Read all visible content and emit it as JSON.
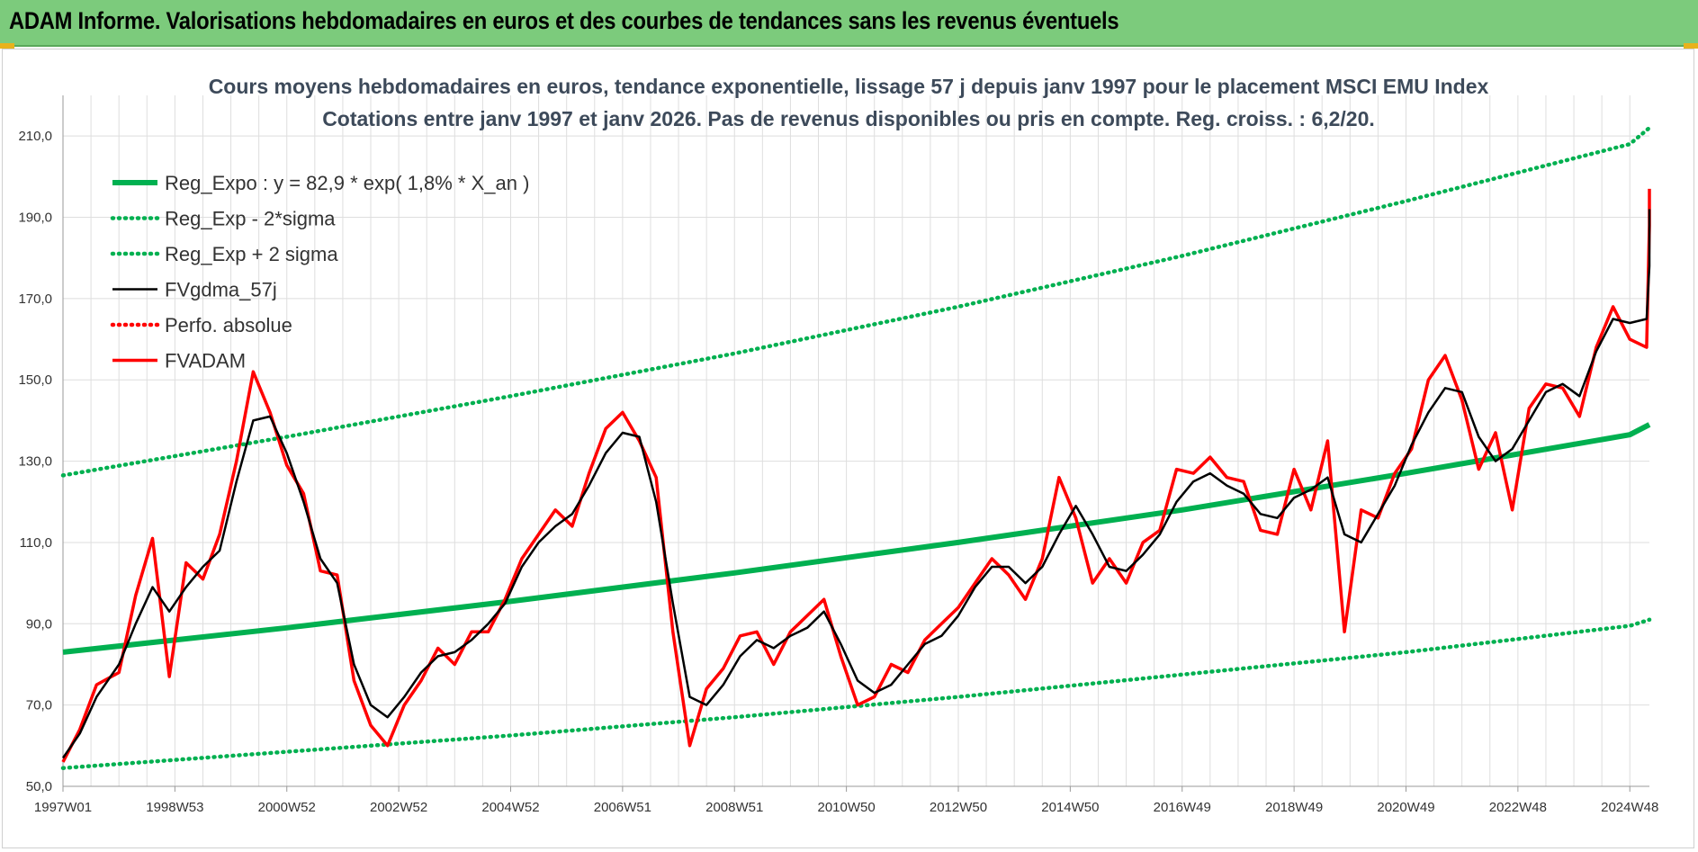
{
  "banner": {
    "title": "ADAM Informe. Valorisations hebdomadaires en euros et des courbes de tendances sans les revenus éventuels"
  },
  "colors": {
    "banner_bg": "#7ccb7c",
    "trend": "#00b050",
    "smooth": "#000000",
    "price": "#ff0000",
    "corner": "#e8b21c"
  },
  "chart_data": {
    "type": "line",
    "title": "Cours moyens hebdomadaires en euros, tendance exponentielle, lissage 57 j depuis janv 1997 pour le placement MSCI EMU Index",
    "subtitle": "Cotations entre janv 1997 et janv 2026. Pas de revenus disponibles ou pris en compte. Reg. croiss. : 6,2/20.",
    "xlabel": "",
    "ylabel": "",
    "ylim": [
      50,
      220
    ],
    "xlim": [
      1997.0,
      2026.0
    ],
    "grid": true,
    "legend_position": "top-left",
    "y_ticks": [
      "50,0",
      "70,0",
      "90,0",
      "110,0",
      "130,0",
      "150,0",
      "170,0",
      "190,0",
      "210,0"
    ],
    "x_ticks": [
      {
        "label": "1997W01",
        "x": 1997.0
      },
      {
        "label": "1998W53",
        "x": 1999.0
      },
      {
        "label": "2000W52",
        "x": 2001.0
      },
      {
        "label": "2002W52",
        "x": 2003.0
      },
      {
        "label": "2004W52",
        "x": 2005.0
      },
      {
        "label": "2006W51",
        "x": 2007.0
      },
      {
        "label": "2008W51",
        "x": 2009.0
      },
      {
        "label": "2010W50",
        "x": 2011.0
      },
      {
        "label": "2012W50",
        "x": 2013.0
      },
      {
        "label": "2014W50",
        "x": 2015.0
      },
      {
        "label": "2016W49",
        "x": 2017.0
      },
      {
        "label": "2018W49",
        "x": 2019.0
      },
      {
        "label": "2020W49",
        "x": 2021.0
      },
      {
        "label": "2022W48",
        "x": 2023.0
      },
      {
        "label": "2024W48",
        "x": 2025.0
      }
    ],
    "series": [
      {
        "name": "Reg_Expo : y = 82,9 * exp( 1,8% *  X_an )",
        "style": "thick",
        "color": "#00b050",
        "x": [
          1997.0,
          2001.0,
          2005.0,
          2009.0,
          2013.0,
          2017.0,
          2021.0,
          2025.0,
          2026.0
        ],
        "y": [
          83.0,
          89.0,
          95.5,
          102.5,
          110.0,
          118.0,
          127.0,
          136.5,
          139.0
        ]
      },
      {
        "name": "Reg_Exp - 2*sigma",
        "style": "dotted",
        "color": "#00b050",
        "x": [
          1997.0,
          2001.0,
          2005.0,
          2009.0,
          2013.0,
          2017.0,
          2021.0,
          2025.0,
          2026.0
        ],
        "y": [
          54.5,
          58.5,
          62.5,
          67.0,
          72.0,
          77.5,
          83.0,
          89.5,
          91.0
        ]
      },
      {
        "name": "Reg_Exp + 2 sigma",
        "style": "dotted",
        "color": "#00b050",
        "x": [
          1997.0,
          2001.0,
          2005.0,
          2009.0,
          2013.0,
          2017.0,
          2021.0,
          2025.0,
          2026.0
        ],
        "y": [
          126.5,
          136.0,
          146.0,
          156.5,
          168.0,
          180.5,
          194.0,
          208.0,
          212.0
        ]
      },
      {
        "name": "FVgdma_57j",
        "style": "solid",
        "color": "#000000",
        "x": [
          1997.0,
          1997.3,
          1997.6,
          1998.0,
          1998.3,
          1998.6,
          1998.9,
          1999.2,
          1999.5,
          1999.8,
          2000.1,
          2000.4,
          2000.7,
          2001.0,
          2001.3,
          2001.6,
          2001.9,
          2002.2,
          2002.5,
          2002.8,
          2003.1,
          2003.4,
          2003.7,
          2004.0,
          2004.3,
          2004.6,
          2004.9,
          2005.2,
          2005.5,
          2005.8,
          2006.1,
          2006.4,
          2006.7,
          2007.0,
          2007.3,
          2007.6,
          2007.9,
          2008.2,
          2008.5,
          2008.8,
          2009.1,
          2009.4,
          2009.7,
          2010.0,
          2010.3,
          2010.6,
          2010.9,
          2011.2,
          2011.5,
          2011.8,
          2012.1,
          2012.4,
          2012.7,
          2013.0,
          2013.3,
          2013.6,
          2013.9,
          2014.2,
          2014.5,
          2014.8,
          2015.1,
          2015.4,
          2015.7,
          2016.0,
          2016.3,
          2016.6,
          2016.9,
          2017.2,
          2017.5,
          2017.8,
          2018.1,
          2018.4,
          2018.7,
          2019.0,
          2019.3,
          2019.6,
          2019.9,
          2020.2,
          2020.5,
          2020.8,
          2021.1,
          2021.4,
          2021.7,
          2022.0,
          2022.3,
          2022.6,
          2022.9,
          2023.2,
          2023.5,
          2023.8,
          2024.1,
          2024.4,
          2024.7,
          2025.0,
          2025.3,
          2025.6,
          2026.0
        ],
        "y": [
          57,
          63,
          72,
          80,
          90,
          99,
          93,
          99,
          104,
          108,
          125,
          140,
          141,
          132,
          120,
          106,
          100,
          80,
          70,
          67,
          72,
          78,
          82,
          83,
          86,
          90,
          95,
          104,
          110,
          114,
          117,
          124,
          132,
          137,
          136,
          120,
          95,
          72,
          70,
          75,
          82,
          86,
          84,
          87,
          89,
          93,
          85,
          76,
          73,
          75,
          80,
          85,
          87,
          92,
          99,
          104,
          104,
          100,
          104,
          112,
          119,
          112,
          104,
          103,
          107,
          112,
          120,
          125,
          127,
          124,
          122,
          117,
          116,
          121,
          123,
          126,
          112,
          110,
          117,
          124,
          134,
          142,
          148,
          147,
          136,
          130,
          133,
          140,
          147,
          149,
          146,
          157,
          165,
          164,
          165,
          178,
          192
        ]
      },
      {
        "name": "Perfo. absolue",
        "style": "dotted",
        "color": "#ff0000",
        "x": [],
        "y": []
      },
      {
        "name": "FVADAM",
        "style": "thick",
        "color": "#ff0000",
        "x": [
          1997.0,
          1997.3,
          1997.6,
          1998.0,
          1998.3,
          1998.6,
          1998.9,
          1999.2,
          1999.5,
          1999.8,
          2000.1,
          2000.4,
          2000.7,
          2001.0,
          2001.3,
          2001.6,
          2001.9,
          2002.2,
          2002.5,
          2002.8,
          2003.1,
          2003.4,
          2003.7,
          2004.0,
          2004.3,
          2004.6,
          2004.9,
          2005.2,
          2005.5,
          2005.8,
          2006.1,
          2006.4,
          2006.7,
          2007.0,
          2007.3,
          2007.6,
          2007.9,
          2008.2,
          2008.5,
          2008.8,
          2009.1,
          2009.4,
          2009.7,
          2010.0,
          2010.3,
          2010.6,
          2010.9,
          2011.2,
          2011.5,
          2011.8,
          2012.1,
          2012.4,
          2012.7,
          2013.0,
          2013.3,
          2013.6,
          2013.9,
          2014.2,
          2014.5,
          2014.8,
          2015.1,
          2015.4,
          2015.7,
          2016.0,
          2016.3,
          2016.6,
          2016.9,
          2017.2,
          2017.5,
          2017.8,
          2018.1,
          2018.4,
          2018.7,
          2019.0,
          2019.3,
          2019.6,
          2019.9,
          2020.2,
          2020.5,
          2020.8,
          2021.1,
          2021.4,
          2021.7,
          2022.0,
          2022.3,
          2022.6,
          2022.9,
          2023.2,
          2023.5,
          2023.8,
          2024.1,
          2024.4,
          2024.7,
          2025.0,
          2025.3,
          2025.6,
          2026.0
        ],
        "y": [
          56,
          64,
          75,
          78,
          97,
          111,
          77,
          105,
          101,
          112,
          130,
          152,
          142,
          129,
          122,
          103,
          102,
          76,
          65,
          60,
          70,
          76,
          84,
          80,
          88,
          88,
          96,
          106,
          112,
          118,
          114,
          127,
          138,
          142,
          135,
          126,
          88,
          60,
          74,
          79,
          87,
          88,
          80,
          88,
          92,
          96,
          82,
          70,
          72,
          80,
          78,
          86,
          90,
          94,
          100,
          106,
          102,
          96,
          106,
          126,
          116,
          100,
          106,
          100,
          110,
          113,
          128,
          127,
          131,
          126,
          125,
          113,
          112,
          128,
          118,
          135,
          88,
          118,
          116,
          127,
          133,
          150,
          156,
          145,
          128,
          137,
          118,
          143,
          149,
          148,
          141,
          158,
          168,
          160,
          158,
          188,
          197
        ]
      }
    ]
  }
}
